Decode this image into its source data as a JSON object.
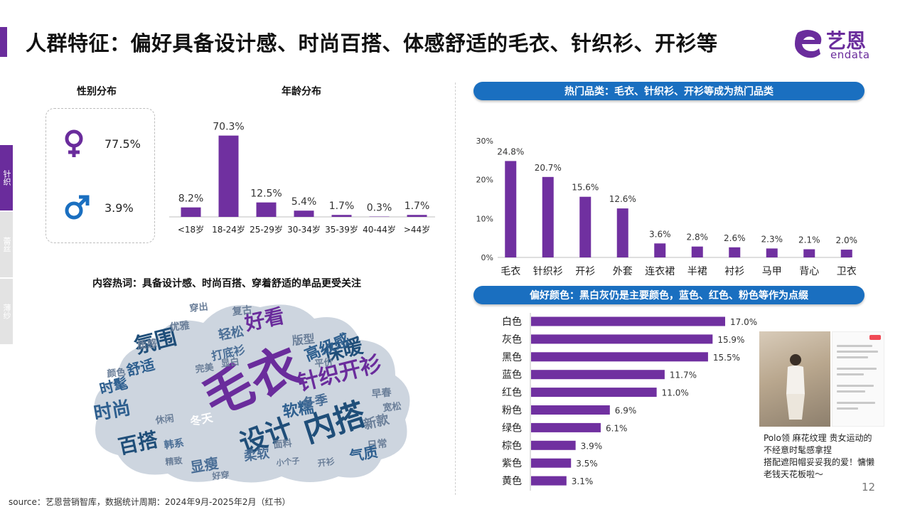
{
  "title": "人群特征：偏好具备设计感、时尚百搭、体感舒适的毛衣、针织衫、开衫等",
  "logo": {
    "cn": "艺恩",
    "en": "endata"
  },
  "side_tabs": [
    {
      "label": "针织",
      "active": true
    },
    {
      "label": "蕾丝",
      "active": false
    },
    {
      "label": "薄纱",
      "active": false
    }
  ],
  "gender": {
    "title": "性别分布",
    "female": {
      "icon": "female-symbol-icon",
      "value": "77.5%"
    },
    "male": {
      "icon": "male-symbol-icon",
      "value": "3.9%"
    }
  },
  "age_section_title": "年龄分布",
  "hot_category_banner": "热门品类：毛衣、针织衫、开衫等成为热门品类",
  "color_banner": "偏好颜色：黑白灰仍是主要颜色，蓝色、红色、粉色等作为点缀",
  "wordcloud": {
    "title": "内容热词：具备设计感、时尚百搭、穿着舒适的单品更受关注",
    "words": [
      "毛衣",
      "内搭",
      "设计",
      "针织开衫",
      "氛围",
      "好看",
      "保暖",
      "百搭",
      "时尚",
      "高级感",
      "舒适",
      "软糯",
      "冬季",
      "时髦",
      "显瘦",
      "轻松",
      "版型",
      "复古",
      "优雅",
      "质感",
      "颜色",
      "打底衫",
      "新款",
      "日常",
      "气质",
      "柔软",
      "冬天",
      "早春",
      "宽松",
      "面料",
      "韩系",
      "休闲",
      "完美",
      "平价",
      "显白",
      "穿出",
      "小个子",
      "开衫",
      "好穿",
      "精致"
    ]
  },
  "post": {
    "caption": [
      "Polo领  麻花纹理 贵女运动的",
      "不经意时髦感拿捏",
      "搭配遮阳帽妥妥我的爱！慵懒",
      "老钱天花板啦～"
    ]
  },
  "source": "source：艺恩营销智库，数据统计周期：2024年9月-2025年2月（红书）",
  "page_number": "12",
  "colors": {
    "purple": "#6a2c9c",
    "bar": "#7030a0",
    "blue_banner": "#1a6fc0",
    "male_blue": "#1a6fc0"
  },
  "chart_data": [
    {
      "id": "age",
      "type": "bar",
      "title": "年龄分布",
      "categories": [
        "<18岁",
        "18-24岁",
        "25-29岁",
        "30-34岁",
        "35-39岁",
        "40-44岁",
        ">44岁"
      ],
      "values": [
        8.2,
        70.3,
        12.5,
        5.4,
        1.7,
        0.3,
        1.7
      ],
      "value_labels": [
        "8.2%",
        "70.3%",
        "12.5%",
        "5.4%",
        "1.7%",
        "0.3%",
        "1.7%"
      ],
      "ylim": [
        0,
        75
      ],
      "grid": false
    },
    {
      "id": "category",
      "type": "bar",
      "categories": [
        "毛衣",
        "针织衫",
        "开衫",
        "外套",
        "连衣裙",
        "半裙",
        "衬衫",
        "马甲",
        "背心",
        "卫衣"
      ],
      "values": [
        24.8,
        20.7,
        15.6,
        12.6,
        3.6,
        2.8,
        2.6,
        2.3,
        2.1,
        2.0
      ],
      "value_labels": [
        "24.8%",
        "20.7%",
        "15.6%",
        "12.6%",
        "3.6%",
        "2.8%",
        "2.6%",
        "2.3%",
        "2.1%",
        "2.0%"
      ],
      "yticks": [
        "30%",
        "20%",
        "10%",
        "0%"
      ],
      "ylim": [
        0,
        30
      ],
      "grid": false
    },
    {
      "id": "color",
      "type": "bar",
      "orientation": "horizontal",
      "categories": [
        "白色",
        "灰色",
        "黑色",
        "蓝色",
        "红色",
        "粉色",
        "绿色",
        "棕色",
        "紫色",
        "黄色"
      ],
      "values": [
        17.0,
        15.9,
        15.5,
        11.7,
        11.0,
        6.9,
        6.1,
        3.9,
        3.5,
        3.1
      ],
      "value_labels": [
        "17.0%",
        "15.9%",
        "15.5%",
        "11.7%",
        "11.0%",
        "6.9%",
        "6.1%",
        "3.9%",
        "3.5%",
        "3.1%"
      ],
      "xlim": [
        0,
        17.0
      ],
      "grid": false
    }
  ]
}
